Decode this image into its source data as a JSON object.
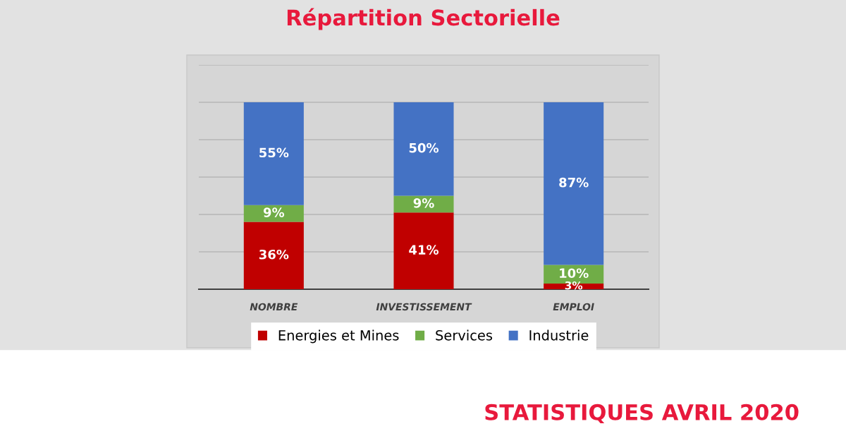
{
  "chart_data": {
    "type": "bar",
    "title": "Répartition Sectorielle",
    "stacked": true,
    "categories": [
      "NOMBRE",
      "INVESTISSEMENT",
      "EMPLOI"
    ],
    "series": [
      {
        "name": "Energies et Mines",
        "color": "#c00000",
        "values": [
          36,
          41,
          3
        ],
        "value_labels": [
          "36%",
          "41%",
          "3%"
        ]
      },
      {
        "name": "Services",
        "color": "#70ad47",
        "values": [
          9,
          9,
          10
        ],
        "value_labels": [
          "9%",
          "9%",
          "10%"
        ]
      },
      {
        "name": "Industrie",
        "color": "#4472c4",
        "values": [
          55,
          50,
          87
        ],
        "value_labels": [
          "55%",
          "50%",
          "87%"
        ]
      }
    ],
    "ylim": [
      0,
      120
    ],
    "yticks": [
      {
        "value": 0,
        "label": null
      },
      {
        "value": 20,
        "label": null
      },
      {
        "value": 40,
        "label": null
      },
      {
        "value": 60,
        "label": null
      },
      {
        "value": 80,
        "label": null
      },
      {
        "value": 100,
        "label": null
      },
      {
        "value": 120,
        "label": null
      }
    ],
    "tick_labels": "x",
    "grid": "y",
    "legend": "bottom",
    "annotations": [
      "STATISTIQUES AVRIL 2020"
    ]
  }
}
